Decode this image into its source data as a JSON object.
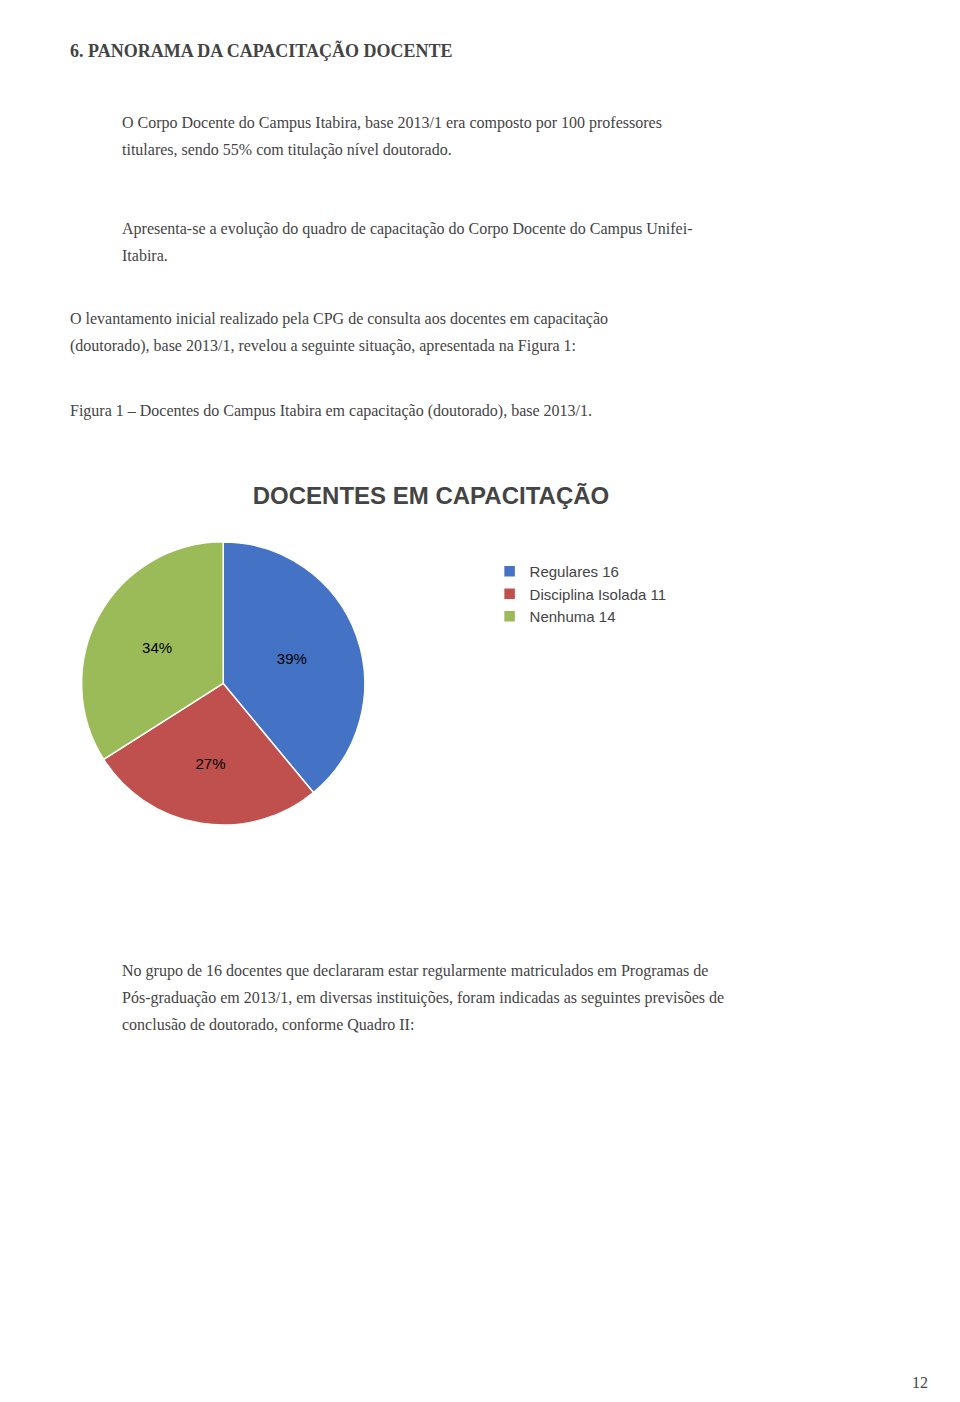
{
  "chart_data": {
    "type": "pie",
    "title": "DOCENTES EM CAPACITAÇÃO",
    "categories": [
      "Regulares 16",
      "Disciplina Isolada 11",
      "Nenhuma 14"
    ],
    "values": [
      39,
      27,
      34
    ],
    "value_labels": [
      "39%",
      "27%",
      "34%"
    ],
    "colors": [
      "#4472C4",
      "#C0504D",
      "#9BBB59"
    ],
    "data_labels": true,
    "legend": "right",
    "annotations": [
      "6. PANORAMA DA CAPACITAÇÃO DOCENTE",
      "O Corpo Docente do Campus Itabira, base 2013/1 era composto por 100 professores",
      "titulares, sendo 55% com titulação nível doutorado.",
      "Apresenta-se a evolução do quadro de capacitação do Corpo Docente do Campus Unifei-",
      "Itabira.",
      "O levantamento inicial realizado pela CPG de consulta aos docentes em capacitação",
      "(doutorado), base 2013/1, revelou a seguinte situação, apresentada na Figura 1:",
      "Figura 1 – Docentes do Campus Itabira em capacitação (doutorado), base 2013/1.",
      "No grupo de 16 docentes que declararam estar regularmente matriculados em Programas de",
      "Pós-graduação em 2013/1, em diversas instituições, foram indicadas as seguintes previsões de",
      "conclusão de doutorado, conforme Quadro II:",
      "12"
    ]
  }
}
